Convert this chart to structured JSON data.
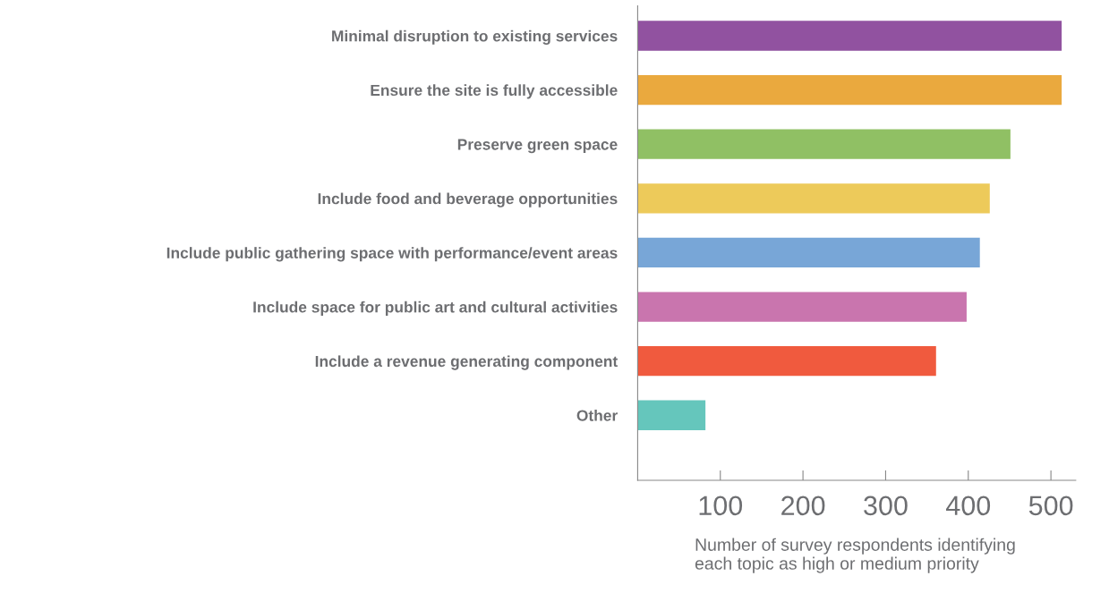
{
  "chart_data": {
    "type": "bar",
    "orientation": "horizontal",
    "categories": [
      "Minimal disruption to existing services",
      "Ensure the site is fully accessible",
      "Preserve green space",
      "Include food and beverage opportunities",
      "Include public gathering space with performance/event areas",
      "Include space for public art and cultural activities",
      "Include a revenue generating component",
      "Other"
    ],
    "values": [
      513,
      513,
      451,
      426,
      414,
      398,
      361,
      82
    ],
    "colors": [
      "#9152a0",
      "#eaa93e",
      "#90c064",
      "#edca5a",
      "#78a6d7",
      "#c975ae",
      "#f05a3e",
      "#65c6bc"
    ],
    "xlabel": "Number of survey respondents identifying\neach topic as high or medium priority",
    "xlim": [
      0,
      530
    ],
    "xticks": [
      100,
      200,
      300,
      400,
      500
    ],
    "grid": false,
    "legend": false
  }
}
